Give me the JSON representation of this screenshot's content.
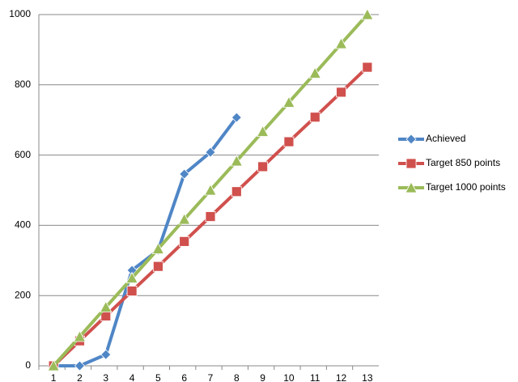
{
  "chart_data": {
    "type": "line",
    "categories": [
      "1",
      "2",
      "3",
      "4",
      "5",
      "6",
      "7",
      "8",
      "9",
      "10",
      "11",
      "12",
      "13"
    ],
    "series": [
      {
        "name": "Achieved",
        "color": "#4f86c6",
        "marker": "diamond",
        "values": [
          0,
          0,
          32,
          272,
          329,
          546,
          608,
          707,
          null,
          null,
          null,
          null,
          null
        ]
      },
      {
        "name": "Target 850 points",
        "color": "#d0504d",
        "marker": "square",
        "values": [
          0,
          71,
          142,
          213,
          283,
          354,
          425,
          496,
          567,
          638,
          708,
          779,
          850
        ]
      },
      {
        "name": "Target 1000 points",
        "color": "#9bbb59",
        "marker": "triangle",
        "values": [
          0,
          83,
          167,
          250,
          333,
          417,
          500,
          583,
          667,
          750,
          833,
          917,
          1000
        ]
      }
    ],
    "ylim": [
      0,
      1000
    ],
    "yticks": [
      0,
      200,
      400,
      600,
      800,
      1000
    ],
    "grid": true,
    "legend": "right"
  }
}
